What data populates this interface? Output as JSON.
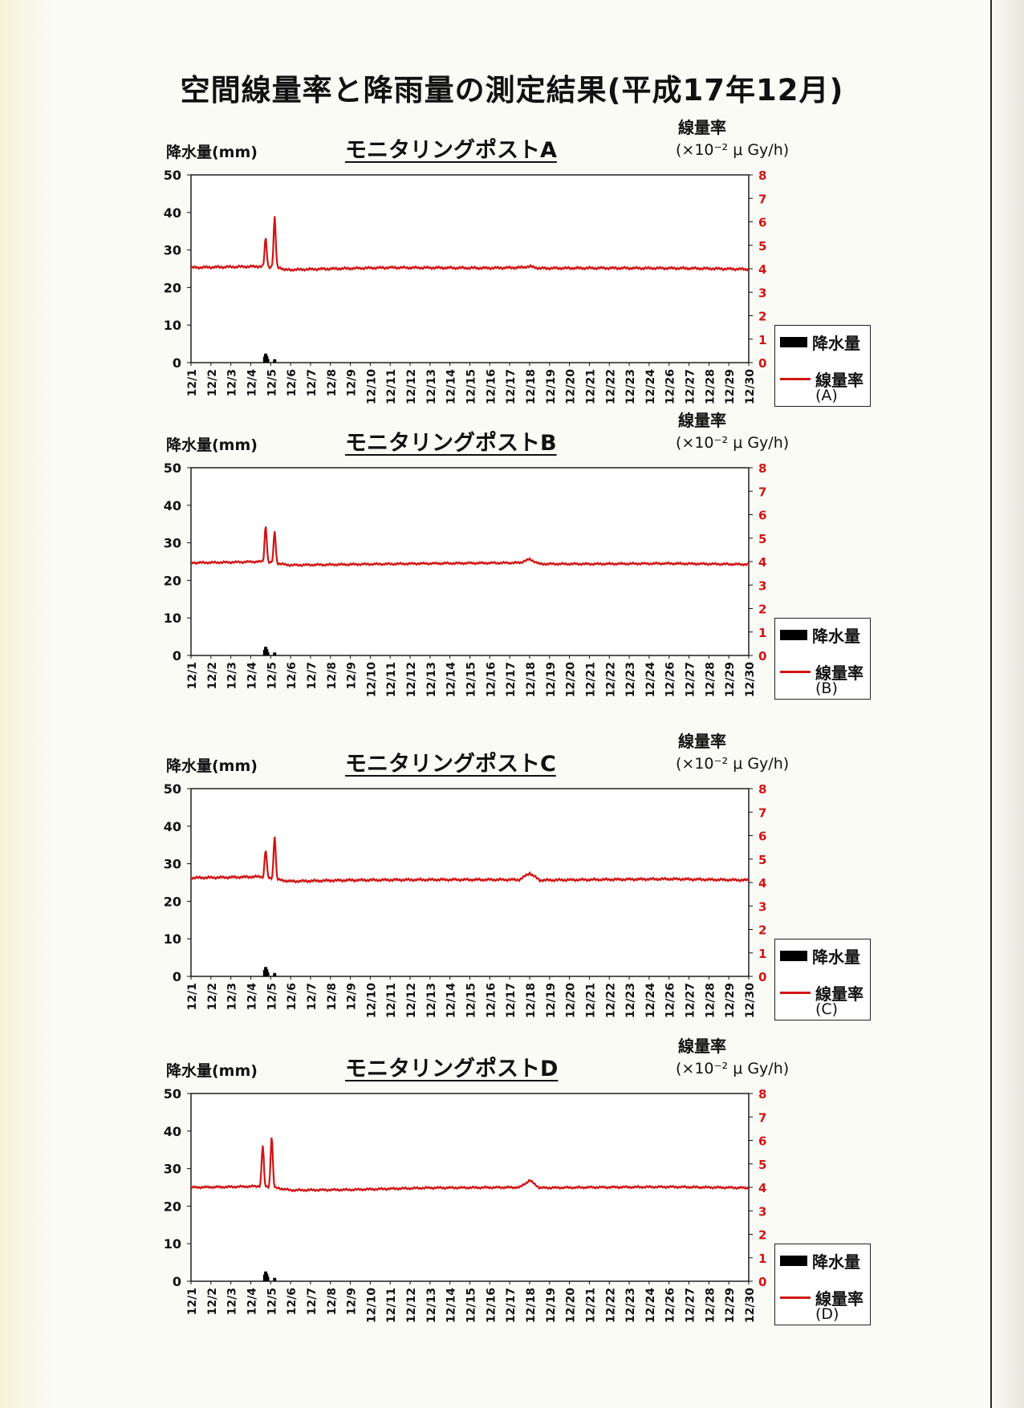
{
  "page_title": "空間線量率と降雨量の測定結果(平成17年12月)",
  "axis_labels": {
    "left": "降水量(mm)",
    "right_line1": "線量率",
    "right_line2": "(×10⁻² μ Gy/h)"
  },
  "legend": {
    "bar": "降水量",
    "line": "線量率"
  },
  "colors": {
    "line": "#d11414",
    "bar": "#000000",
    "right_ticks": "#d11414"
  },
  "chart_data": [
    {
      "type": "bar+line",
      "title": "モニタリングポストA",
      "legend_sub": "(A)",
      "categories": [
        "12/1",
        "12/2",
        "12/3",
        "12/4",
        "12/5",
        "12/6",
        "12/7",
        "12/8",
        "12/9",
        "12/10",
        "12/11",
        "12/12",
        "12/13",
        "12/14",
        "12/15",
        "12/16",
        "12/17",
        "12/18",
        "12/19",
        "12/20",
        "12/21",
        "12/22",
        "12/23",
        "12/24",
        "12/26",
        "12/27",
        "12/28",
        "12/29",
        "12/30"
      ],
      "ylim_left": [
        0,
        50
      ],
      "yticks_left": [
        0,
        10,
        20,
        30,
        40,
        50
      ],
      "ylim_right": [
        0,
        8
      ],
      "yticks_right": [
        0,
        1,
        2,
        3,
        4,
        5,
        6,
        7,
        8
      ],
      "rain": [
        {
          "x": 3.7,
          "y": 1.6
        },
        {
          "x": 3.75,
          "y": 2.4
        },
        {
          "x": 3.8,
          "y": 1.8
        },
        {
          "x": 3.85,
          "y": 1.0
        },
        {
          "x": 4.2,
          "y": 0.9
        }
      ],
      "dose": {
        "baseline": [
          [
            0,
            4.05
          ],
          [
            2,
            4.08
          ],
          [
            3.5,
            4.1
          ],
          [
            4.5,
            4.05
          ],
          [
            4.7,
            3.95
          ],
          [
            6,
            3.98
          ],
          [
            10,
            4.05
          ],
          [
            15,
            4.03
          ],
          [
            16.5,
            4.05
          ],
          [
            17,
            4.1
          ],
          [
            17.5,
            4.02
          ],
          [
            20,
            4.03
          ],
          [
            25,
            4.02
          ],
          [
            28,
            3.98
          ],
          [
            29.2,
            4.0
          ]
        ],
        "peaks": [
          {
            "x": 3.75,
            "y": 5.3
          },
          {
            "x": 4.2,
            "y": 6.2
          }
        ],
        "wiggle": 0.035
      }
    },
    {
      "type": "bar+line",
      "title": "モニタリングポストB",
      "legend_sub": "(B)",
      "categories": [
        "12/1",
        "12/2",
        "12/3",
        "12/4",
        "12/5",
        "12/6",
        "12/7",
        "12/8",
        "12/9",
        "12/10",
        "12/11",
        "12/12",
        "12/13",
        "12/14",
        "12/15",
        "12/16",
        "12/17",
        "12/18",
        "12/19",
        "12/20",
        "12/21",
        "12/22",
        "12/23",
        "12/24",
        "12/26",
        "12/27",
        "12/28",
        "12/29",
        "12/30"
      ],
      "ylim_left": [
        0,
        50
      ],
      "yticks_left": [
        0,
        10,
        20,
        30,
        40,
        50
      ],
      "ylim_right": [
        0,
        8
      ],
      "yticks_right": [
        0,
        1,
        2,
        3,
        4,
        5,
        6,
        7,
        8
      ],
      "rain": [
        {
          "x": 3.7,
          "y": 1.5
        },
        {
          "x": 3.75,
          "y": 2.3
        },
        {
          "x": 3.8,
          "y": 1.7
        },
        {
          "x": 3.85,
          "y": 0.9
        },
        {
          "x": 4.2,
          "y": 0.8
        }
      ],
      "dose": {
        "baseline": [
          [
            0,
            3.95
          ],
          [
            2,
            3.97
          ],
          [
            3.5,
            4.0
          ],
          [
            4.5,
            3.9
          ],
          [
            5,
            3.85
          ],
          [
            8,
            3.88
          ],
          [
            12,
            3.92
          ],
          [
            16.5,
            3.95
          ],
          [
            17,
            4.1
          ],
          [
            17.5,
            3.9
          ],
          [
            20,
            3.9
          ],
          [
            24,
            3.92
          ],
          [
            28,
            3.88
          ],
          [
            29.2,
            3.9
          ]
        ],
        "peaks": [
          {
            "x": 3.75,
            "y": 5.55
          },
          {
            "x": 4.2,
            "y": 5.3
          }
        ],
        "wiggle": 0.03
      }
    },
    {
      "type": "bar+line",
      "title": "モニタリングポストC",
      "legend_sub": "(C)",
      "categories": [
        "12/1",
        "12/2",
        "12/3",
        "12/4",
        "12/5",
        "12/6",
        "12/7",
        "12/8",
        "12/9",
        "12/10",
        "12/11",
        "12/12",
        "12/13",
        "12/14",
        "12/15",
        "12/16",
        "12/17",
        "12/18",
        "12/19",
        "12/20",
        "12/21",
        "12/22",
        "12/23",
        "12/24",
        "12/26",
        "12/27",
        "12/28",
        "12/29",
        "12/30"
      ],
      "ylim_left": [
        0,
        50
      ],
      "yticks_left": [
        0,
        10,
        20,
        30,
        40,
        50
      ],
      "ylim_right": [
        0,
        8
      ],
      "yticks_right": [
        0,
        1,
        2,
        3,
        4,
        5,
        6,
        7,
        8
      ],
      "rain": [
        {
          "x": 3.7,
          "y": 1.7
        },
        {
          "x": 3.75,
          "y": 2.5
        },
        {
          "x": 3.8,
          "y": 1.9
        },
        {
          "x": 3.85,
          "y": 1.1
        },
        {
          "x": 4.2,
          "y": 0.9
        }
      ],
      "dose": {
        "baseline": [
          [
            0,
            4.2
          ],
          [
            2,
            4.22
          ],
          [
            3.5,
            4.25
          ],
          [
            4.5,
            4.1
          ],
          [
            5,
            4.05
          ],
          [
            8,
            4.1
          ],
          [
            12,
            4.12
          ],
          [
            16.5,
            4.12
          ],
          [
            17,
            4.4
          ],
          [
            17.5,
            4.1
          ],
          [
            20,
            4.12
          ],
          [
            24,
            4.15
          ],
          [
            28,
            4.1
          ],
          [
            29.2,
            4.15
          ]
        ],
        "peaks": [
          {
            "x": 3.75,
            "y": 5.4
          },
          {
            "x": 4.2,
            "y": 6.0
          }
        ],
        "wiggle": 0.035
      }
    },
    {
      "type": "bar+line",
      "title": "モニタリングポストD",
      "legend_sub": "(D)",
      "categories": [
        "12/1",
        "12/2",
        "12/3",
        "12/4",
        "12/5",
        "12/6",
        "12/7",
        "12/8",
        "12/9",
        "12/10",
        "12/11",
        "12/12",
        "12/13",
        "12/14",
        "12/15",
        "12/16",
        "12/17",
        "12/18",
        "12/19",
        "12/20",
        "12/21",
        "12/22",
        "12/23",
        "12/24",
        "12/26",
        "12/27",
        "12/28",
        "12/29",
        "12/30"
      ],
      "ylim_left": [
        0,
        50
      ],
      "yticks_left": [
        0,
        10,
        20,
        30,
        40,
        50
      ],
      "ylim_right": [
        0,
        8
      ],
      "yticks_right": [
        0,
        1,
        2,
        3,
        4,
        5,
        6,
        7,
        8
      ],
      "rain": [
        {
          "x": 3.7,
          "y": 1.8
        },
        {
          "x": 3.75,
          "y": 2.6
        },
        {
          "x": 3.8,
          "y": 2.0
        },
        {
          "x": 3.85,
          "y": 1.2
        },
        {
          "x": 4.2,
          "y": 0.9
        }
      ],
      "dose": {
        "baseline": [
          [
            0,
            4.0
          ],
          [
            2,
            4.02
          ],
          [
            3.5,
            4.05
          ],
          [
            4.5,
            3.95
          ],
          [
            5,
            3.88
          ],
          [
            8,
            3.9
          ],
          [
            12,
            3.98
          ],
          [
            16.5,
            4.0
          ],
          [
            17,
            4.3
          ],
          [
            17.5,
            3.98
          ],
          [
            20,
            4.0
          ],
          [
            24,
            4.02
          ],
          [
            28,
            3.98
          ],
          [
            29.2,
            4.0
          ]
        ],
        "peaks": [
          {
            "x": 3.6,
            "y": 5.8
          },
          {
            "x": 4.05,
            "y": 6.2
          }
        ],
        "wiggle": 0.03
      }
    }
  ]
}
